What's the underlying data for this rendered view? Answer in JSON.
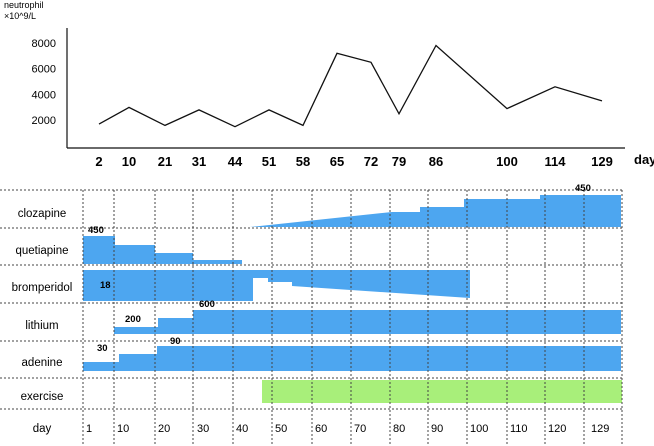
{
  "chart_data": [
    {
      "type": "line",
      "ylabel_line1": "neutrophil",
      "ylabel_line2": "×10^9/L",
      "xlabel": "day",
      "yticks": [
        2000,
        4000,
        6000,
        8000
      ],
      "ytick_labels": [
        "2000",
        "4000",
        "6000",
        "8000"
      ],
      "ylim": [
        0,
        9000
      ],
      "x": [
        "2",
        "10",
        "21",
        "31",
        "44",
        "51",
        "58",
        "65",
        "72",
        "79",
        "86",
        "100",
        "114",
        "129"
      ],
      "series": [
        {
          "values": [
            1700,
            3000,
            1600,
            2800,
            1500,
            2800,
            1600,
            7200,
            6500,
            2500,
            7800,
            2900,
            4600,
            3500
          ]
        }
      ]
    },
    {
      "type": "timeline",
      "rows": [
        {
          "label": "clozapine",
          "dose_label": "450"
        },
        {
          "label": "quetiapine",
          "dose_label": "450"
        },
        {
          "label": "bromperidol",
          "dose_label": "18"
        },
        {
          "label": "lithium",
          "dose_label_1": "200",
          "dose_label_2": "600"
        },
        {
          "label": "adenine",
          "dose_label_1": "30",
          "dose_label_2": "90"
        },
        {
          "label": "exercise"
        }
      ],
      "day_row_label": "day",
      "day_ticks": [
        "1",
        "10",
        "20",
        "30",
        "40",
        "50",
        "60",
        "70",
        "80",
        "90",
        "100",
        "110",
        "120",
        "129"
      ],
      "colors": {
        "bar": "#4da6f0",
        "exercise": "#a8ef7a"
      }
    }
  ]
}
